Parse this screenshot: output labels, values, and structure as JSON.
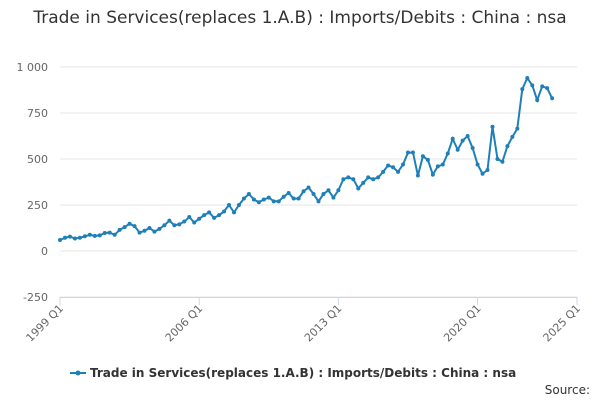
{
  "chart_data": {
    "type": "line",
    "title": "Trade in Services(replaces 1.A.B) : Imports/Debits : China : nsa",
    "x": [
      "1999 Q1",
      "1999 Q2",
      "1999 Q3",
      "1999 Q4",
      "2000 Q1",
      "2000 Q2",
      "2000 Q3",
      "2000 Q4",
      "2001 Q1",
      "2001 Q2",
      "2001 Q3",
      "2001 Q4",
      "2002 Q1",
      "2002 Q2",
      "2002 Q3",
      "2002 Q4",
      "2003 Q1",
      "2003 Q2",
      "2003 Q3",
      "2003 Q4",
      "2004 Q1",
      "2004 Q2",
      "2004 Q3",
      "2004 Q4",
      "2005 Q1",
      "2005 Q2",
      "2005 Q3",
      "2005 Q4",
      "2006 Q1",
      "2006 Q2",
      "2006 Q3",
      "2006 Q4",
      "2007 Q1",
      "2007 Q2",
      "2007 Q3",
      "2007 Q4",
      "2008 Q1",
      "2008 Q2",
      "2008 Q3",
      "2008 Q4",
      "2009 Q1",
      "2009 Q2",
      "2009 Q3",
      "2009 Q4",
      "2010 Q1",
      "2010 Q2",
      "2010 Q3",
      "2010 Q4",
      "2011 Q1",
      "2011 Q2",
      "2011 Q3",
      "2011 Q4",
      "2012 Q1",
      "2012 Q2",
      "2012 Q3",
      "2012 Q4",
      "2013 Q1",
      "2013 Q2",
      "2013 Q3",
      "2013 Q4",
      "2014 Q1",
      "2014 Q2",
      "2014 Q3",
      "2014 Q4",
      "2015 Q1",
      "2015 Q2",
      "2015 Q3",
      "2015 Q4",
      "2016 Q1",
      "2016 Q2",
      "2016 Q3",
      "2016 Q4",
      "2017 Q1",
      "2017 Q2",
      "2017 Q3",
      "2017 Q4",
      "2018 Q1",
      "2018 Q2",
      "2018 Q3",
      "2018 Q4",
      "2019 Q1",
      "2019 Q2",
      "2019 Q3",
      "2019 Q4",
      "2020 Q1",
      "2020 Q2",
      "2020 Q3",
      "2020 Q4",
      "2021 Q1",
      "2021 Q2",
      "2021 Q3",
      "2021 Q4",
      "2022 Q1",
      "2022 Q2",
      "2022 Q3",
      "2022 Q4",
      "2023 Q1",
      "2023 Q2",
      "2023 Q3",
      "2023 Q4"
    ],
    "series": [
      {
        "name": "Trade in Services(replaces 1.A.B) : Imports/Debits : China : nsa",
        "color": "#1f7fb8",
        "values": [
          60,
          72,
          78,
          68,
          72,
          80,
          88,
          82,
          85,
          98,
          100,
          88,
          115,
          130,
          148,
          135,
          100,
          110,
          125,
          105,
          120,
          140,
          165,
          140,
          145,
          160,
          185,
          155,
          175,
          195,
          210,
          180,
          195,
          215,
          250,
          210,
          250,
          285,
          310,
          280,
          265,
          280,
          290,
          270,
          270,
          295,
          315,
          285,
          285,
          325,
          345,
          310,
          270,
          310,
          330,
          290,
          330,
          390,
          400,
          390,
          340,
          370,
          400,
          390,
          400,
          430,
          465,
          455,
          430,
          470,
          535,
          535,
          410,
          515,
          495,
          415,
          460,
          470,
          530,
          610,
          550,
          600,
          625,
          560,
          470,
          420,
          440,
          675,
          500,
          485,
          570,
          620,
          665,
          880,
          940,
          900,
          820,
          895,
          885,
          830
        ]
      }
    ],
    "xlim": [
      "1999 Q1",
      "2025 Q1"
    ],
    "xticks": [
      "1999 Q1",
      "2006 Q1",
      "2013 Q1",
      "2020 Q1",
      "2025 Q1"
    ],
    "ylim": [
      -250,
      1000
    ],
    "yticks": [
      -250,
      0,
      250,
      500,
      750,
      {
        "value": 1000,
        "label": "1 000"
      }
    ],
    "grid": true,
    "source": "Source:"
  }
}
